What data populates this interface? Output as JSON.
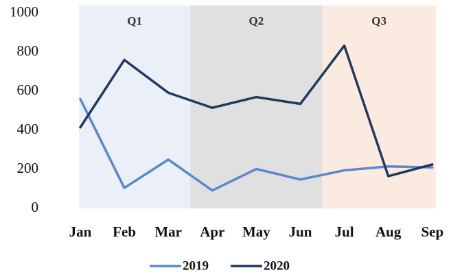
{
  "chart_data": {
    "type": "line",
    "categories": [
      "Jan",
      "Feb",
      "Mar",
      "Apr",
      "May",
      "Jun",
      "Jul",
      "Aug",
      "Sep"
    ],
    "series": [
      {
        "name": "2019",
        "color": "#5b87cf",
        "values": [
          560,
          105,
          250,
          92,
          202,
          148,
          195,
          215,
          210
        ]
      },
      {
        "name": "2020",
        "color": "#1f3a5f",
        "values": [
          415,
          760,
          592,
          515,
          570,
          535,
          833,
          165,
          225
        ]
      }
    ],
    "bands": [
      {
        "label": "Q1",
        "color": "#ebf0f8"
      },
      {
        "label": "Q2",
        "color": "#e0e0e0"
      },
      {
        "label": "Q3",
        "color": "#fbeae0"
      }
    ],
    "ylim": [
      0,
      1000
    ],
    "yticks": [
      0,
      200,
      400,
      600,
      800,
      1000
    ],
    "grid": false,
    "legend": "bottom"
  }
}
